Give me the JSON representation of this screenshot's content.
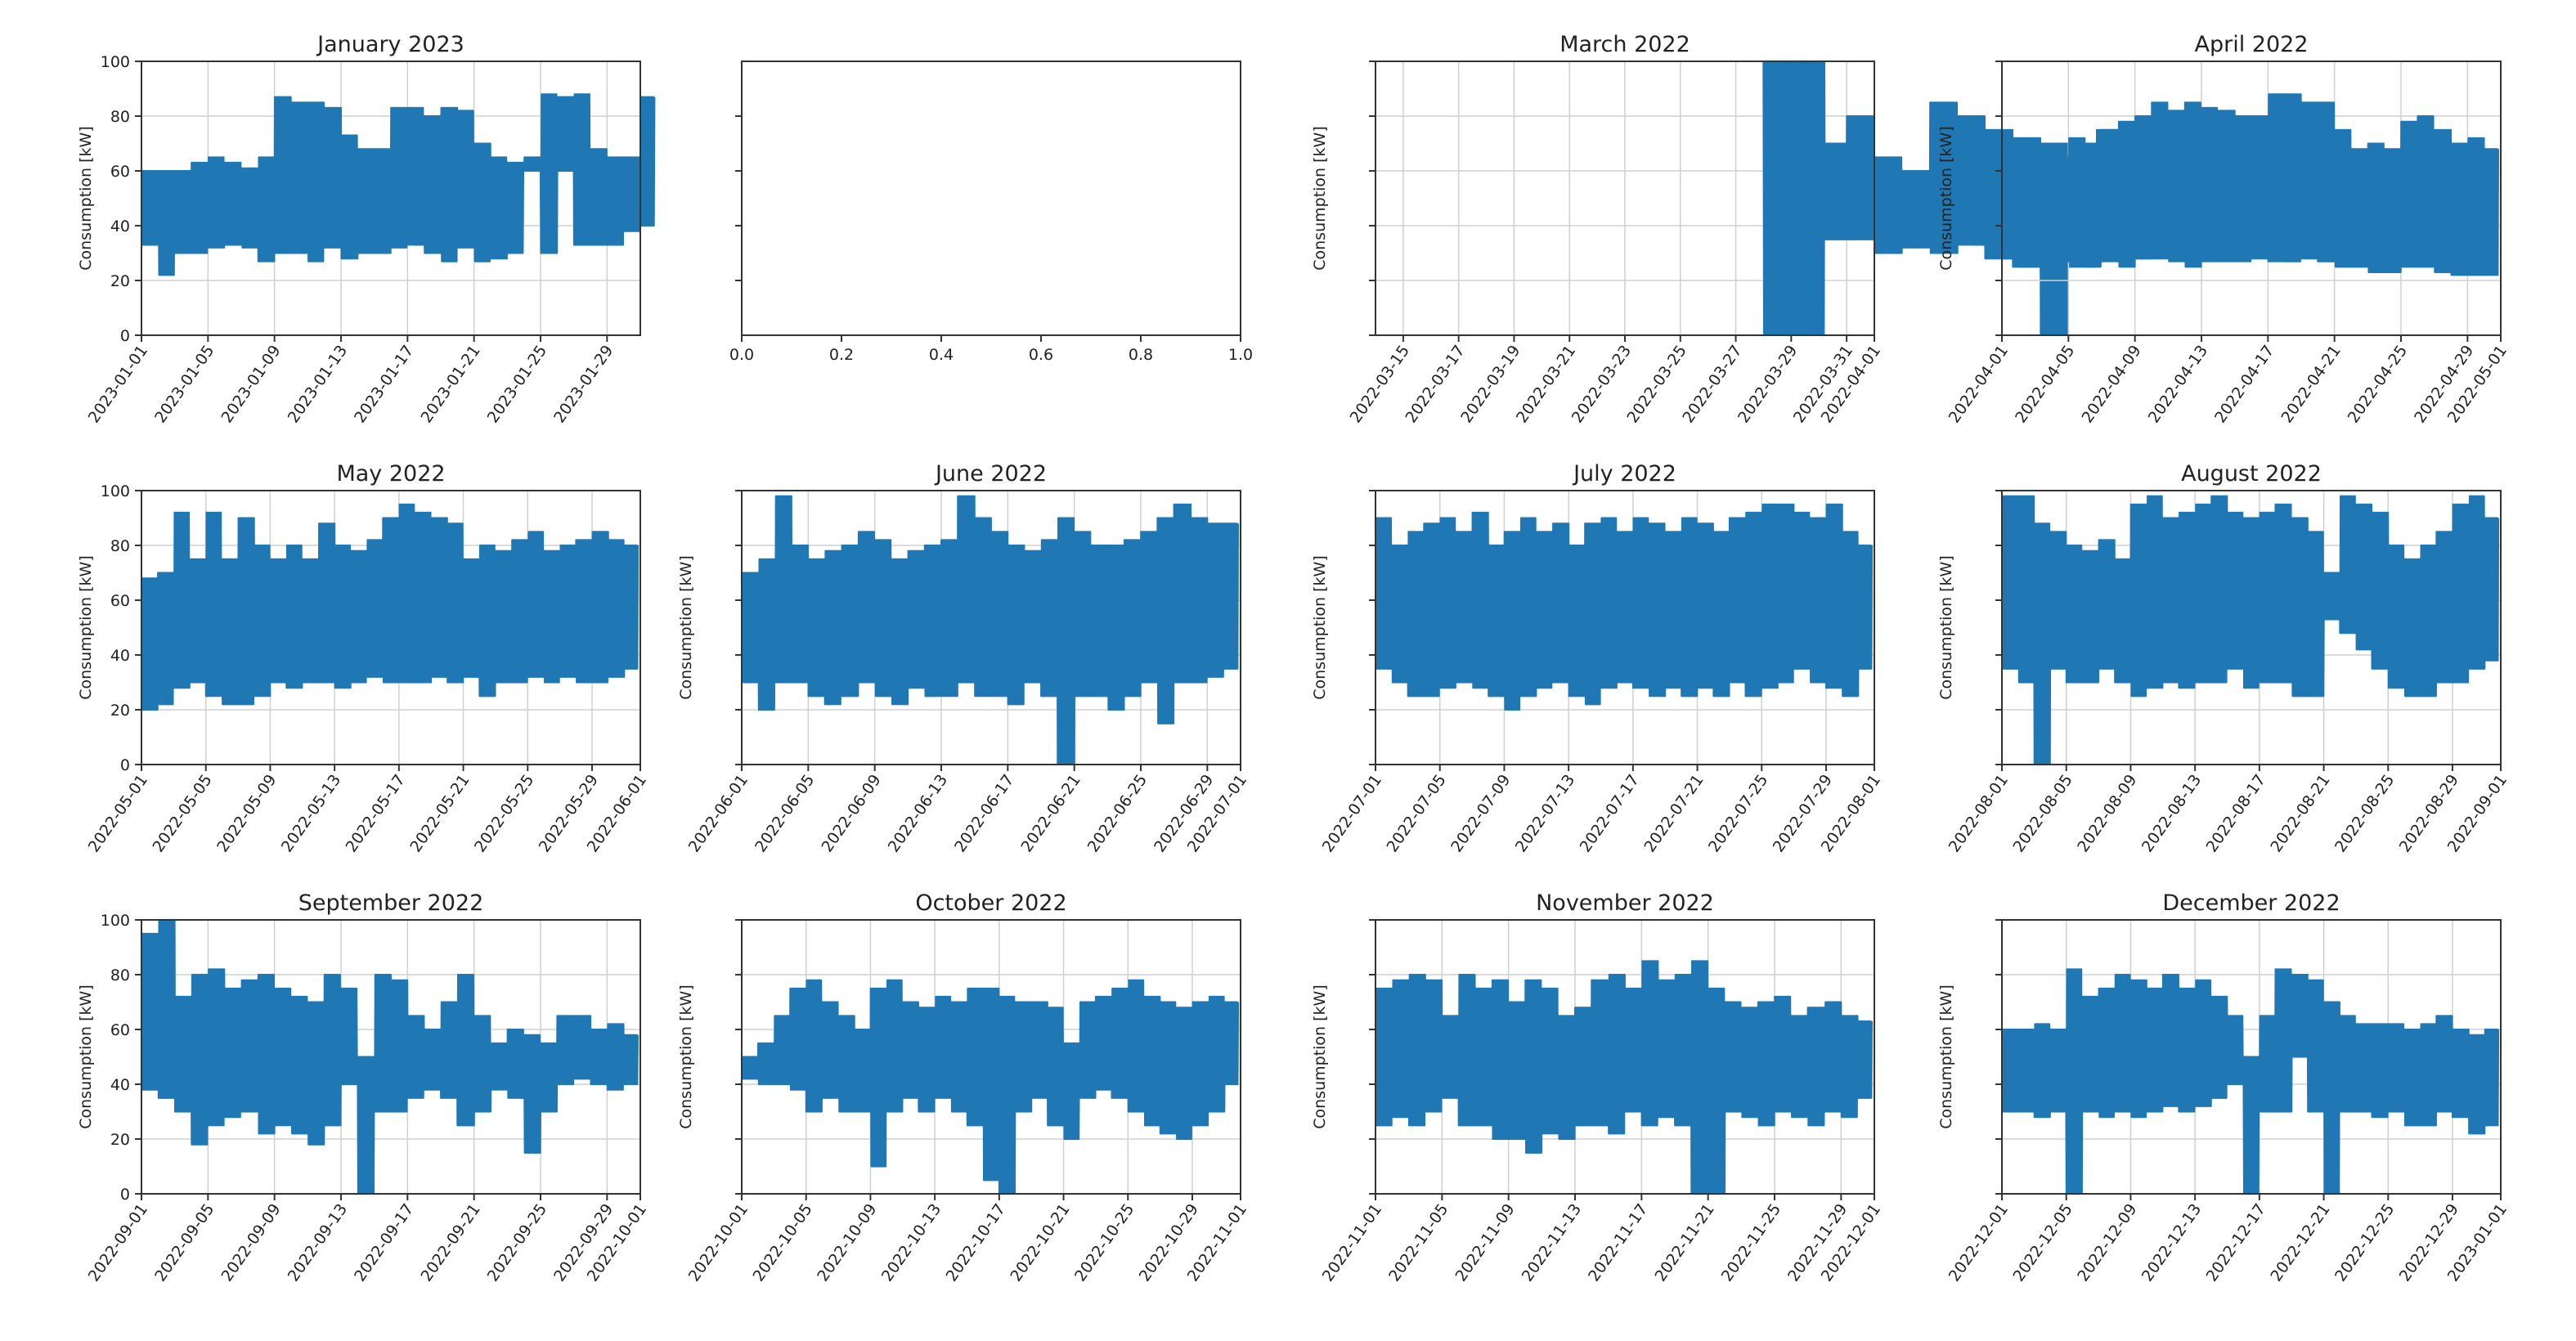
{
  "figure": {
    "series_color": "#1f77b4",
    "grid_color": "#d0d0d0",
    "frame_color": "#333333"
  },
  "chart_data": [
    {
      "type": "line",
      "title": "January 2023",
      "ylabel": "Consumption [kW]",
      "ylim": [
        0,
        100
      ],
      "yticks": [
        "0",
        "20",
        "40",
        "60",
        "80",
        "100"
      ],
      "show_ytick_labels": true,
      "x_range": [
        "2023-01-01",
        "2023-01-31"
      ],
      "xticks": [
        "2023-01-01",
        "2023-01-05",
        "2023-01-09",
        "2023-01-13",
        "2023-01-17",
        "2023-01-21",
        "2023-01-25",
        "2023-01-29"
      ],
      "grid": true,
      "series_days": [
        1,
        2,
        3,
        4,
        5,
        6,
        7,
        8,
        9,
        10,
        11,
        12,
        13,
        14,
        15,
        16,
        17,
        18,
        19,
        20,
        21,
        22,
        23,
        24,
        25,
        26,
        27,
        28,
        29,
        30,
        31
      ],
      "series_low": [
        33,
        22,
        30,
        30,
        32,
        33,
        32,
        27,
        30,
        30,
        27,
        32,
        28,
        30,
        30,
        32,
        33,
        30,
        27,
        32,
        27,
        28,
        30,
        60,
        30,
        60,
        33,
        33,
        33,
        38,
        40
      ],
      "series_high": [
        60,
        60,
        60,
        63,
        65,
        63,
        61,
        65,
        87,
        85,
        85,
        83,
        73,
        68,
        68,
        83,
        83,
        80,
        83,
        82,
        70,
        65,
        63,
        65,
        88,
        87,
        88,
        68,
        65,
        65,
        87
      ]
    },
    {
      "type": "line",
      "title": "",
      "ylabel": "",
      "xlim": [
        0,
        1
      ],
      "xticks_numeric": [
        "0.0",
        "0.2",
        "0.4",
        "0.6",
        "0.8",
        "1.0"
      ],
      "yticks_unlabeled": 4,
      "grid": false,
      "empty": true
    },
    {
      "type": "line",
      "title": "March 2022",
      "ylabel": "Consumption [kW]",
      "ylim": [
        0,
        100
      ],
      "yticks": [
        "0",
        "20",
        "40",
        "60",
        "80",
        "100"
      ],
      "show_ytick_labels": false,
      "x_range": [
        "2022-03-14",
        "2022-04-01"
      ],
      "xticks": [
        "2022-03-15",
        "2022-03-17",
        "2022-03-19",
        "2022-03-21",
        "2022-03-23",
        "2022-03-25",
        "2022-03-27",
        "2022-03-29",
        "2022-03-31",
        "2022-04-01"
      ],
      "grid": true,
      "series_days": [
        15,
        15.5,
        16,
        16.5,
        17,
        17.2,
        18,
        19,
        20,
        21,
        22,
        23,
        24,
        25,
        26,
        27,
        28,
        29,
        30,
        31,
        31.5
      ],
      "series_low": [
        0,
        0,
        0,
        0,
        0,
        35,
        35,
        30,
        32,
        30,
        33,
        28,
        25,
        0,
        25,
        28,
        28,
        30,
        40,
        30,
        28
      ],
      "series_high": [
        100,
        100,
        100,
        100,
        100,
        70,
        80,
        65,
        60,
        85,
        80,
        75,
        72,
        70,
        68,
        75,
        70,
        75,
        75,
        70,
        68
      ],
      "gap_after_day": 29.5
    },
    {
      "type": "line",
      "title": "April 2022",
      "ylabel": "Consumption [kW]",
      "ylim": [
        0,
        100
      ],
      "yticks": [
        "0",
        "20",
        "40",
        "60",
        "80",
        "100"
      ],
      "show_ytick_labels": false,
      "x_range": [
        "2022-04-01",
        "2022-05-01"
      ],
      "xticks": [
        "2022-04-01",
        "2022-04-05",
        "2022-04-09",
        "2022-04-13",
        "2022-04-17",
        "2022-04-21",
        "2022-04-25",
        "2022-04-29",
        "2022-05-01"
      ],
      "grid": true,
      "series_days": [
        1,
        2,
        3,
        4,
        5,
        6,
        7,
        8,
        9,
        10,
        11,
        12,
        13,
        14,
        15,
        16,
        17,
        18,
        19,
        20,
        21,
        22,
        23,
        24,
        25,
        26,
        27,
        28,
        29,
        30
      ],
      "series_low": [
        28,
        25,
        25,
        27,
        27,
        25,
        27,
        25,
        28,
        28,
        27,
        25,
        27,
        27,
        27,
        28,
        27,
        27,
        28,
        27,
        25,
        25,
        23,
        23,
        25,
        25,
        23,
        22,
        22,
        22
      ],
      "series_high": [
        70,
        65,
        62,
        65,
        72,
        70,
        75,
        78,
        80,
        85,
        82,
        85,
        83,
        82,
        80,
        80,
        88,
        88,
        85,
        85,
        75,
        68,
        70,
        68,
        78,
        80,
        75,
        70,
        72,
        68
      ]
    },
    {
      "type": "line",
      "title": "May 2022",
      "ylabel": "Consumption [kW]",
      "ylim": [
        0,
        100
      ],
      "yticks": [
        "0",
        "20",
        "40",
        "60",
        "80",
        "100"
      ],
      "show_ytick_labels": true,
      "x_range": [
        "2022-05-01",
        "2022-06-01"
      ],
      "xticks": [
        "2022-05-01",
        "2022-05-05",
        "2022-05-09",
        "2022-05-13",
        "2022-05-17",
        "2022-05-21",
        "2022-05-25",
        "2022-05-29",
        "2022-06-01"
      ],
      "grid": true,
      "series_days": [
        1,
        2,
        3,
        4,
        5,
        6,
        7,
        8,
        9,
        10,
        11,
        12,
        13,
        14,
        15,
        16,
        17,
        18,
        19,
        20,
        21,
        22,
        23,
        24,
        25,
        26,
        27,
        28,
        29,
        30,
        31
      ],
      "series_low": [
        20,
        22,
        28,
        30,
        25,
        22,
        22,
        25,
        30,
        28,
        30,
        30,
        28,
        30,
        32,
        30,
        30,
        30,
        32,
        30,
        32,
        25,
        30,
        30,
        32,
        30,
        32,
        30,
        30,
        32,
        35
      ],
      "series_high": [
        68,
        70,
        92,
        75,
        92,
        75,
        90,
        80,
        75,
        80,
        75,
        88,
        80,
        78,
        82,
        90,
        95,
        92,
        90,
        88,
        75,
        80,
        78,
        82,
        85,
        78,
        80,
        82,
        85,
        82,
        80
      ]
    },
    {
      "type": "line",
      "title": "June 2022",
      "ylabel": "Consumption [kW]",
      "ylim": [
        0,
        100
      ],
      "yticks": [
        "0",
        "20",
        "40",
        "60",
        "80",
        "100"
      ],
      "show_ytick_labels": false,
      "x_range": [
        "2022-06-01",
        "2022-07-01"
      ],
      "xticks": [
        "2022-06-01",
        "2022-06-05",
        "2022-06-09",
        "2022-06-13",
        "2022-06-17",
        "2022-06-21",
        "2022-06-25",
        "2022-06-29",
        "2022-07-01"
      ],
      "grid": true,
      "series_days": [
        1,
        2,
        3,
        4,
        5,
        6,
        7,
        8,
        9,
        10,
        11,
        12,
        13,
        14,
        15,
        16,
        17,
        18,
        19,
        20,
        21,
        22,
        23,
        24,
        25,
        26,
        27,
        28,
        29,
        30
      ],
      "series_low": [
        30,
        20,
        30,
        30,
        25,
        22,
        25,
        30,
        25,
        22,
        28,
        25,
        25,
        30,
        25,
        25,
        22,
        30,
        25,
        0,
        25,
        25,
        20,
        25,
        30,
        15,
        30,
        30,
        32,
        35
      ],
      "series_high": [
        70,
        75,
        98,
        80,
        75,
        78,
        80,
        85,
        82,
        75,
        78,
        80,
        82,
        98,
        90,
        85,
        80,
        78,
        82,
        90,
        85,
        80,
        80,
        82,
        85,
        90,
        95,
        90,
        88,
        88
      ]
    },
    {
      "type": "line",
      "title": "July 2022",
      "ylabel": "Consumption [kW]",
      "ylim": [
        0,
        100
      ],
      "yticks": [
        "0",
        "20",
        "40",
        "60",
        "80",
        "100"
      ],
      "show_ytick_labels": false,
      "x_range": [
        "2022-07-01",
        "2022-08-01"
      ],
      "xticks": [
        "2022-07-01",
        "2022-07-05",
        "2022-07-09",
        "2022-07-13",
        "2022-07-17",
        "2022-07-21",
        "2022-07-25",
        "2022-07-29",
        "2022-08-01"
      ],
      "grid": true,
      "series_days": [
        1,
        2,
        3,
        4,
        5,
        6,
        7,
        8,
        9,
        10,
        11,
        12,
        13,
        14,
        15,
        16,
        17,
        18,
        19,
        20,
        21,
        22,
        23,
        24,
        25,
        26,
        27,
        28,
        29,
        30,
        31
      ],
      "series_low": [
        35,
        30,
        25,
        25,
        28,
        30,
        28,
        25,
        20,
        25,
        28,
        30,
        25,
        22,
        28,
        30,
        28,
        25,
        28,
        25,
        28,
        25,
        30,
        25,
        28,
        30,
        35,
        30,
        28,
        25,
        35
      ],
      "series_high": [
        90,
        80,
        85,
        88,
        90,
        85,
        92,
        80,
        85,
        90,
        85,
        88,
        80,
        88,
        90,
        85,
        90,
        88,
        85,
        90,
        88,
        85,
        90,
        92,
        95,
        95,
        92,
        90,
        95,
        85,
        80
      ]
    },
    {
      "type": "line",
      "title": "August 2022",
      "ylabel": "Consumption [kW]",
      "ylim": [
        0,
        100
      ],
      "yticks": [
        "0",
        "20",
        "40",
        "60",
        "80",
        "100"
      ],
      "show_ytick_labels": false,
      "x_range": [
        "2022-08-01",
        "2022-09-01"
      ],
      "xticks": [
        "2022-08-01",
        "2022-08-05",
        "2022-08-09",
        "2022-08-13",
        "2022-08-17",
        "2022-08-21",
        "2022-08-25",
        "2022-08-29",
        "2022-09-01"
      ],
      "grid": true,
      "series_days": [
        1,
        2,
        3,
        4,
        5,
        6,
        7,
        8,
        9,
        10,
        11,
        12,
        13,
        14,
        15,
        16,
        17,
        18,
        19,
        20,
        21,
        22,
        23,
        24,
        25,
        26,
        27,
        28,
        29,
        30,
        31
      ],
      "series_low": [
        35,
        30,
        0,
        35,
        30,
        30,
        35,
        30,
        25,
        28,
        30,
        28,
        30,
        30,
        35,
        28,
        30,
        30,
        25,
        25,
        53,
        48,
        42,
        35,
        28,
        25,
        25,
        30,
        30,
        35,
        38
      ],
      "series_high": [
        98,
        98,
        88,
        85,
        80,
        78,
        82,
        75,
        95,
        98,
        90,
        92,
        95,
        98,
        92,
        90,
        92,
        95,
        90,
        85,
        70,
        98,
        95,
        92,
        80,
        75,
        80,
        85,
        95,
        98,
        90
      ]
    },
    {
      "type": "line",
      "title": "September 2022",
      "ylabel": "Consumption [kW]",
      "ylim": [
        0,
        100
      ],
      "yticks": [
        "0",
        "20",
        "40",
        "60",
        "80",
        "100"
      ],
      "show_ytick_labels": true,
      "x_range": [
        "2022-09-01",
        "2022-10-01"
      ],
      "xticks": [
        "2022-09-01",
        "2022-09-05",
        "2022-09-09",
        "2022-09-13",
        "2022-09-17",
        "2022-09-21",
        "2022-09-25",
        "2022-09-29",
        "2022-10-01"
      ],
      "grid": true,
      "series_days": [
        1,
        2,
        3,
        4,
        5,
        6,
        7,
        8,
        9,
        10,
        11,
        12,
        13,
        14,
        15,
        16,
        17,
        18,
        19,
        20,
        21,
        22,
        23,
        24,
        25,
        26,
        27,
        28,
        29,
        30
      ],
      "series_low": [
        38,
        35,
        30,
        18,
        25,
        28,
        30,
        22,
        25,
        22,
        18,
        25,
        40,
        0,
        30,
        30,
        35,
        38,
        35,
        25,
        30,
        38,
        35,
        15,
        30,
        40,
        42,
        40,
        38,
        40
      ],
      "series_high": [
        95,
        100,
        72,
        80,
        82,
        75,
        78,
        80,
        75,
        72,
        70,
        80,
        75,
        50,
        80,
        78,
        65,
        60,
        70,
        80,
        65,
        55,
        60,
        58,
        55,
        65,
        65,
        60,
        62,
        58
      ]
    },
    {
      "type": "line",
      "title": "October 2022",
      "ylabel": "Consumption [kW]",
      "ylim": [
        0,
        100
      ],
      "yticks": [
        "0",
        "20",
        "40",
        "60",
        "80",
        "100"
      ],
      "show_ytick_labels": false,
      "x_range": [
        "2022-10-01",
        "2022-11-01"
      ],
      "xticks": [
        "2022-10-01",
        "2022-10-05",
        "2022-10-09",
        "2022-10-13",
        "2022-10-17",
        "2022-10-21",
        "2022-10-25",
        "2022-10-29",
        "2022-11-01"
      ],
      "grid": true,
      "series_days": [
        1,
        2,
        3,
        4,
        5,
        6,
        7,
        8,
        9,
        10,
        11,
        12,
        13,
        14,
        15,
        16,
        17,
        18,
        19,
        20,
        21,
        22,
        23,
        24,
        25,
        26,
        27,
        28,
        29,
        30,
        31
      ],
      "series_low": [
        42,
        40,
        40,
        38,
        30,
        35,
        30,
        30,
        10,
        30,
        35,
        30,
        35,
        30,
        25,
        5,
        0,
        30,
        35,
        25,
        20,
        35,
        38,
        35,
        30,
        25,
        22,
        20,
        25,
        30,
        40
      ],
      "series_high": [
        50,
        55,
        65,
        75,
        78,
        70,
        65,
        60,
        75,
        78,
        70,
        68,
        72,
        70,
        75,
        75,
        72,
        70,
        70,
        68,
        55,
        70,
        72,
        75,
        78,
        72,
        70,
        68,
        70,
        72,
        70
      ]
    },
    {
      "type": "line",
      "title": "November 2022",
      "ylabel": "Consumption [kW]",
      "ylim": [
        0,
        100
      ],
      "yticks": [
        "0",
        "20",
        "40",
        "60",
        "80",
        "100"
      ],
      "show_ytick_labels": false,
      "x_range": [
        "2022-11-01",
        "2022-12-01"
      ],
      "xticks": [
        "2022-11-01",
        "2022-11-05",
        "2022-11-09",
        "2022-11-13",
        "2022-11-17",
        "2022-11-21",
        "2022-11-25",
        "2022-11-29",
        "2022-12-01"
      ],
      "grid": true,
      "series_days": [
        1,
        2,
        3,
        4,
        5,
        6,
        7,
        8,
        9,
        10,
        11,
        12,
        13,
        14,
        15,
        16,
        17,
        18,
        19,
        20,
        21,
        22,
        23,
        24,
        25,
        26,
        27,
        28,
        29,
        30
      ],
      "series_low": [
        25,
        28,
        25,
        30,
        35,
        25,
        25,
        20,
        20,
        15,
        22,
        20,
        25,
        25,
        22,
        30,
        25,
        28,
        25,
        0,
        0,
        30,
        28,
        25,
        30,
        28,
        25,
        30,
        28,
        35
      ],
      "series_high": [
        75,
        78,
        80,
        78,
        65,
        80,
        75,
        78,
        70,
        78,
        75,
        65,
        68,
        78,
        80,
        75,
        85,
        78,
        80,
        85,
        75,
        70,
        68,
        70,
        72,
        65,
        68,
        70,
        65,
        63
      ]
    },
    {
      "type": "line",
      "title": "December 2022",
      "ylabel": "Consumption [kW]",
      "ylim": [
        0,
        100
      ],
      "yticks": [
        "0",
        "20",
        "40",
        "60",
        "80",
        "100"
      ],
      "show_ytick_labels": false,
      "x_range": [
        "2022-12-01",
        "2023-01-01"
      ],
      "xticks": [
        "2022-12-01",
        "2022-12-05",
        "2022-12-09",
        "2022-12-13",
        "2022-12-17",
        "2022-12-21",
        "2022-12-25",
        "2022-12-29",
        "2023-01-01"
      ],
      "grid": true,
      "series_days": [
        1,
        2,
        3,
        4,
        5,
        6,
        7,
        8,
        9,
        10,
        11,
        12,
        13,
        14,
        15,
        16,
        17,
        18,
        19,
        20,
        21,
        22,
        23,
        24,
        25,
        26,
        27,
        28,
        29,
        30,
        31
      ],
      "series_low": [
        30,
        30,
        28,
        30,
        0,
        30,
        28,
        30,
        28,
        30,
        32,
        30,
        32,
        35,
        40,
        0,
        30,
        30,
        50,
        30,
        0,
        30,
        30,
        28,
        30,
        25,
        25,
        30,
        28,
        22,
        25
      ],
      "series_high": [
        60,
        60,
        62,
        60,
        82,
        72,
        75,
        80,
        78,
        75,
        80,
        75,
        78,
        72,
        65,
        50,
        65,
        82,
        80,
        78,
        70,
        65,
        62,
        62,
        62,
        60,
        62,
        65,
        60,
        58,
        60
      ]
    }
  ]
}
